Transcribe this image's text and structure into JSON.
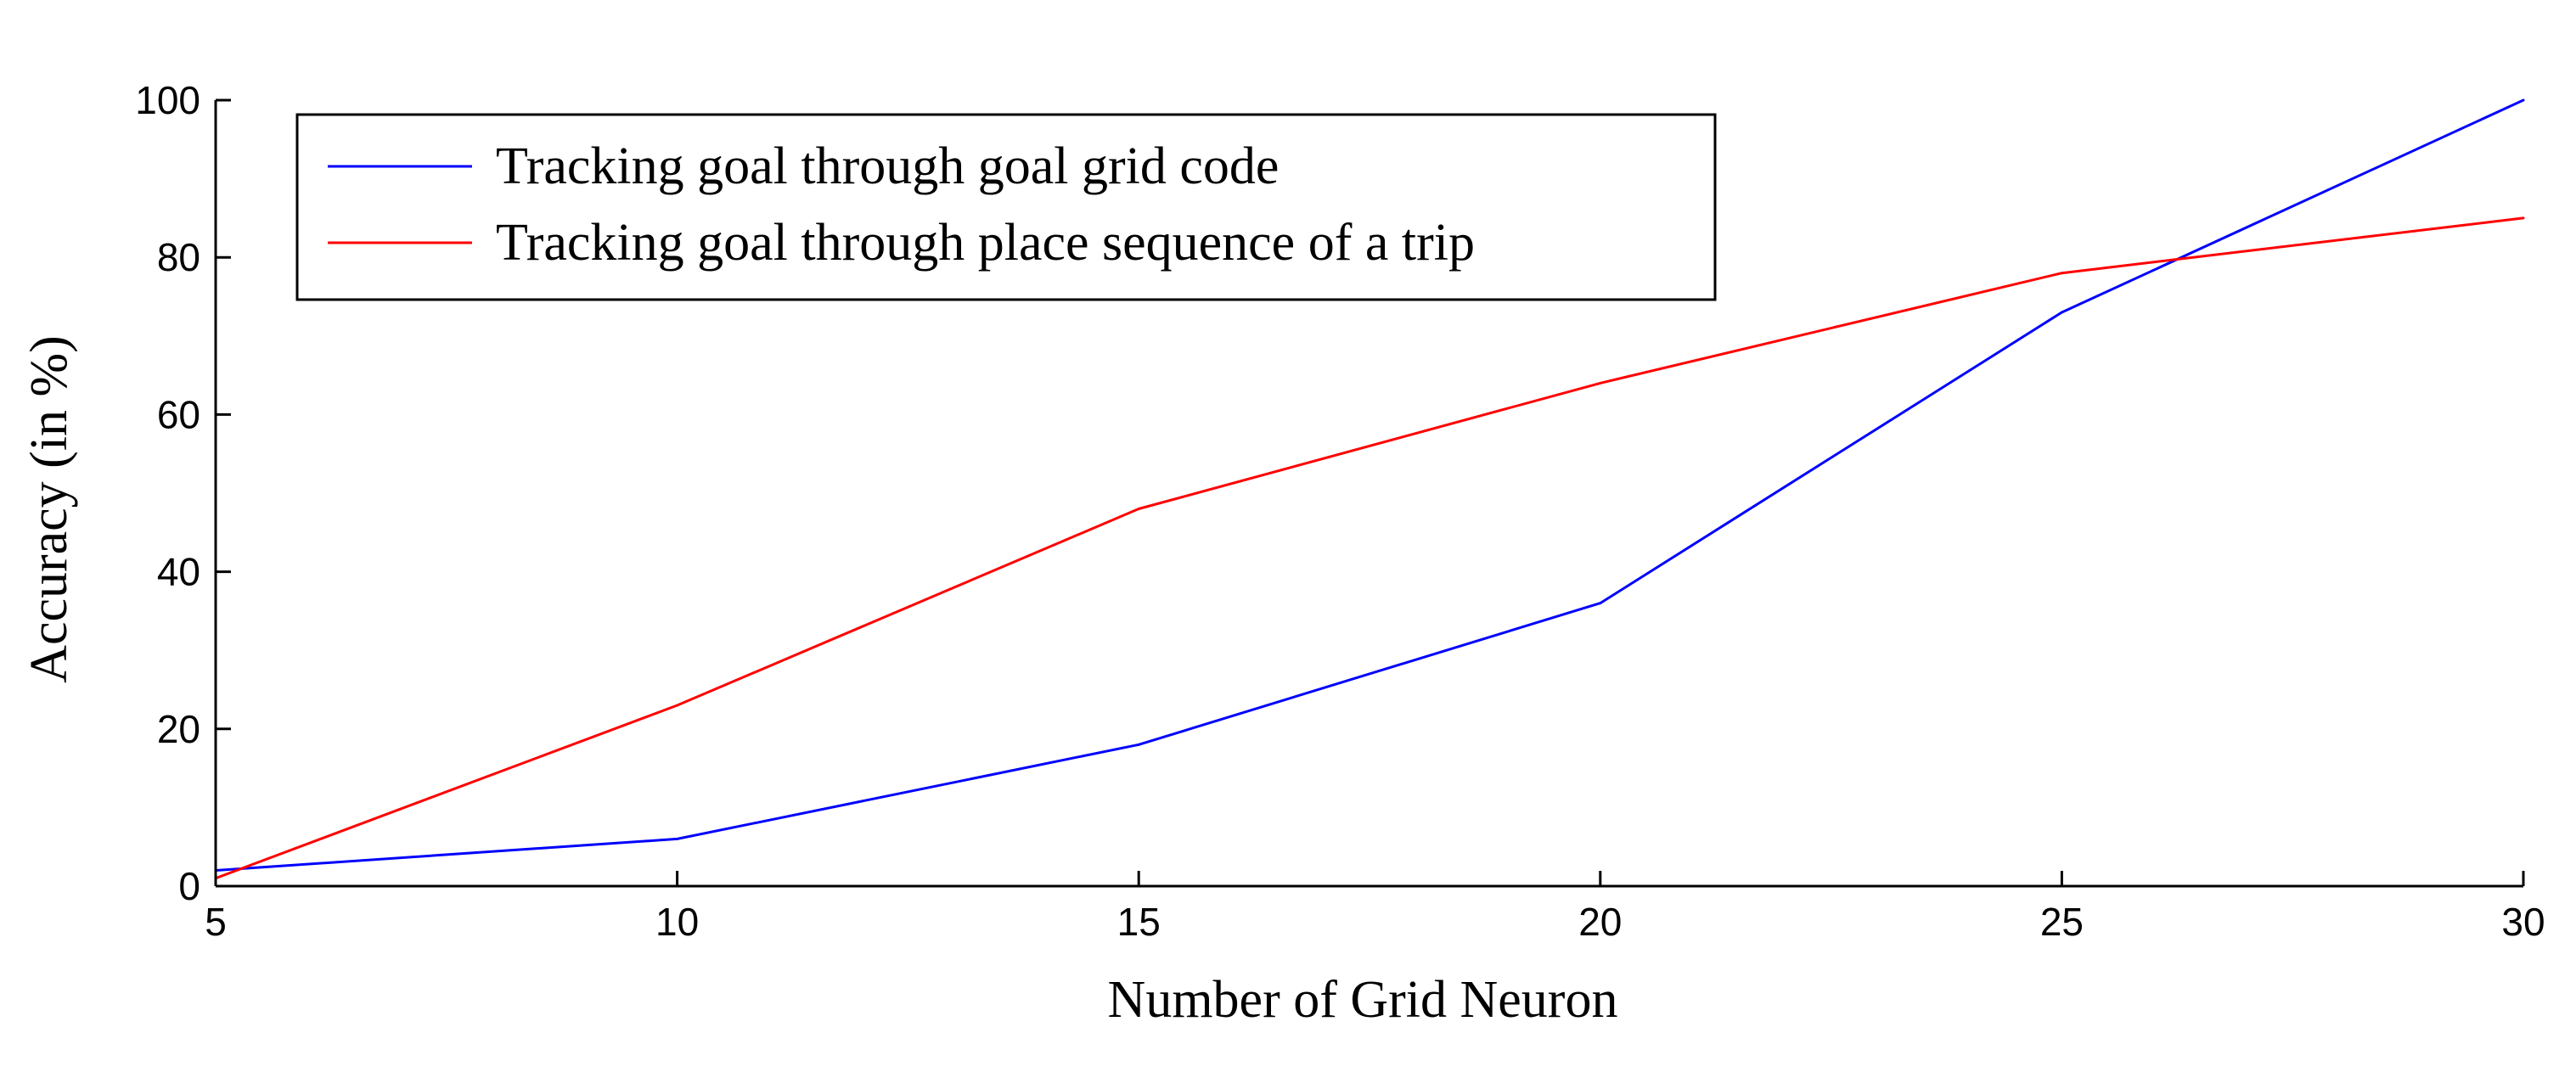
{
  "chart_data": {
    "type": "line",
    "title": "",
    "xlabel": "Number of Grid Neuron",
    "ylabel": "Accuracy (in %)",
    "xlim": [
      5,
      30
    ],
    "ylim": [
      0,
      100
    ],
    "x_ticks": [
      5,
      10,
      15,
      20,
      25,
      30
    ],
    "y_ticks": [
      0,
      20,
      40,
      60,
      80,
      100
    ],
    "x_tick_labels": [
      "5",
      "10",
      "15",
      "20",
      "25",
      "30"
    ],
    "y_tick_labels": [
      "0",
      "20",
      "40",
      "60",
      "80",
      "100"
    ],
    "grid": false,
    "legend_position": "top-left",
    "x": [
      5,
      10,
      15,
      20,
      25,
      30
    ],
    "series": [
      {
        "name": "Tracking goal through goal grid code",
        "color": "#0000ff",
        "values": [
          2,
          6,
          18,
          36,
          73,
          100
        ]
      },
      {
        "name": "Tracking goal through place sequence of a trip",
        "color": "#ff0000",
        "values": [
          1,
          23,
          48,
          64,
          78,
          85
        ]
      }
    ]
  }
}
